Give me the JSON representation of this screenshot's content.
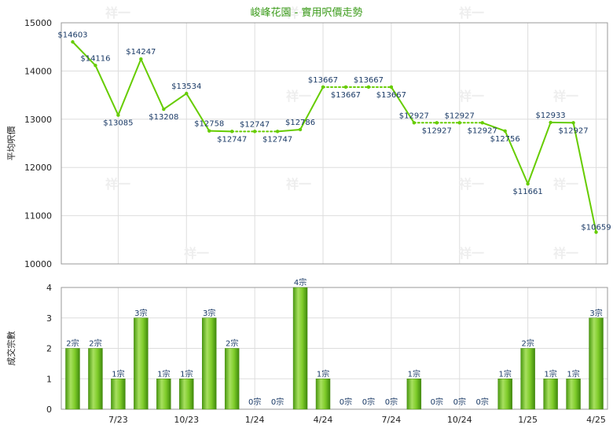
{
  "chart_data": [
    {
      "type": "line",
      "title": "峻峰花園 - 實用呎價走勢",
      "ylabel": "平均呎價",
      "ylim": [
        10000,
        15000
      ],
      "yticks": [
        10000,
        11000,
        12000,
        13000,
        14000,
        15000
      ],
      "grid": true,
      "color": "#66cc00",
      "values": [
        14603,
        14116,
        13085,
        14247,
        13208,
        13534,
        12758,
        12747,
        12747,
        12747,
        12786,
        13667,
        13667,
        13667,
        13667,
        12927,
        12927,
        12927,
        12927,
        12756,
        11661,
        12933,
        12927,
        10659
      ],
      "labels": [
        "$14603",
        "$14116",
        "$13085",
        "$14247",
        "$13208",
        "$13534",
        "$12758",
        "$12747",
        "$12747",
        "$12747",
        "$12786",
        "$13667",
        "$13667",
        "$13667",
        "$13667",
        "$12927",
        "$12927",
        "$12927",
        "$12927",
        "$12756",
        "$11661",
        "$12933",
        "$12927",
        "$10659"
      ]
    },
    {
      "type": "bar",
      "ylabel": "成交宗數",
      "ylim": [
        0,
        4
      ],
      "yticks": [
        0,
        1,
        2,
        3,
        4
      ],
      "grid": true,
      "color": "#66bb22",
      "categories": [
        "7/23",
        "10/23",
        "1/24",
        "4/24",
        "7/24",
        "10/24",
        "1/25",
        "4/25"
      ],
      "values": [
        2,
        2,
        1,
        3,
        1,
        1,
        3,
        2,
        0,
        0,
        4,
        1,
        0,
        0,
        0,
        1,
        0,
        0,
        0,
        1,
        2,
        1,
        1,
        3
      ],
      "labels": [
        "2宗",
        "2宗",
        "1宗",
        "3宗",
        "1宗",
        "1宗",
        "3宗",
        "2宗",
        "0宗",
        "0宗",
        "4宗",
        "1宗",
        "0宗",
        "0宗",
        "0宗",
        "1宗",
        "0宗",
        "0宗",
        "0宗",
        "1宗",
        "2宗",
        "1宗",
        "1宗",
        "3宗"
      ]
    }
  ],
  "watermark": "祥一"
}
